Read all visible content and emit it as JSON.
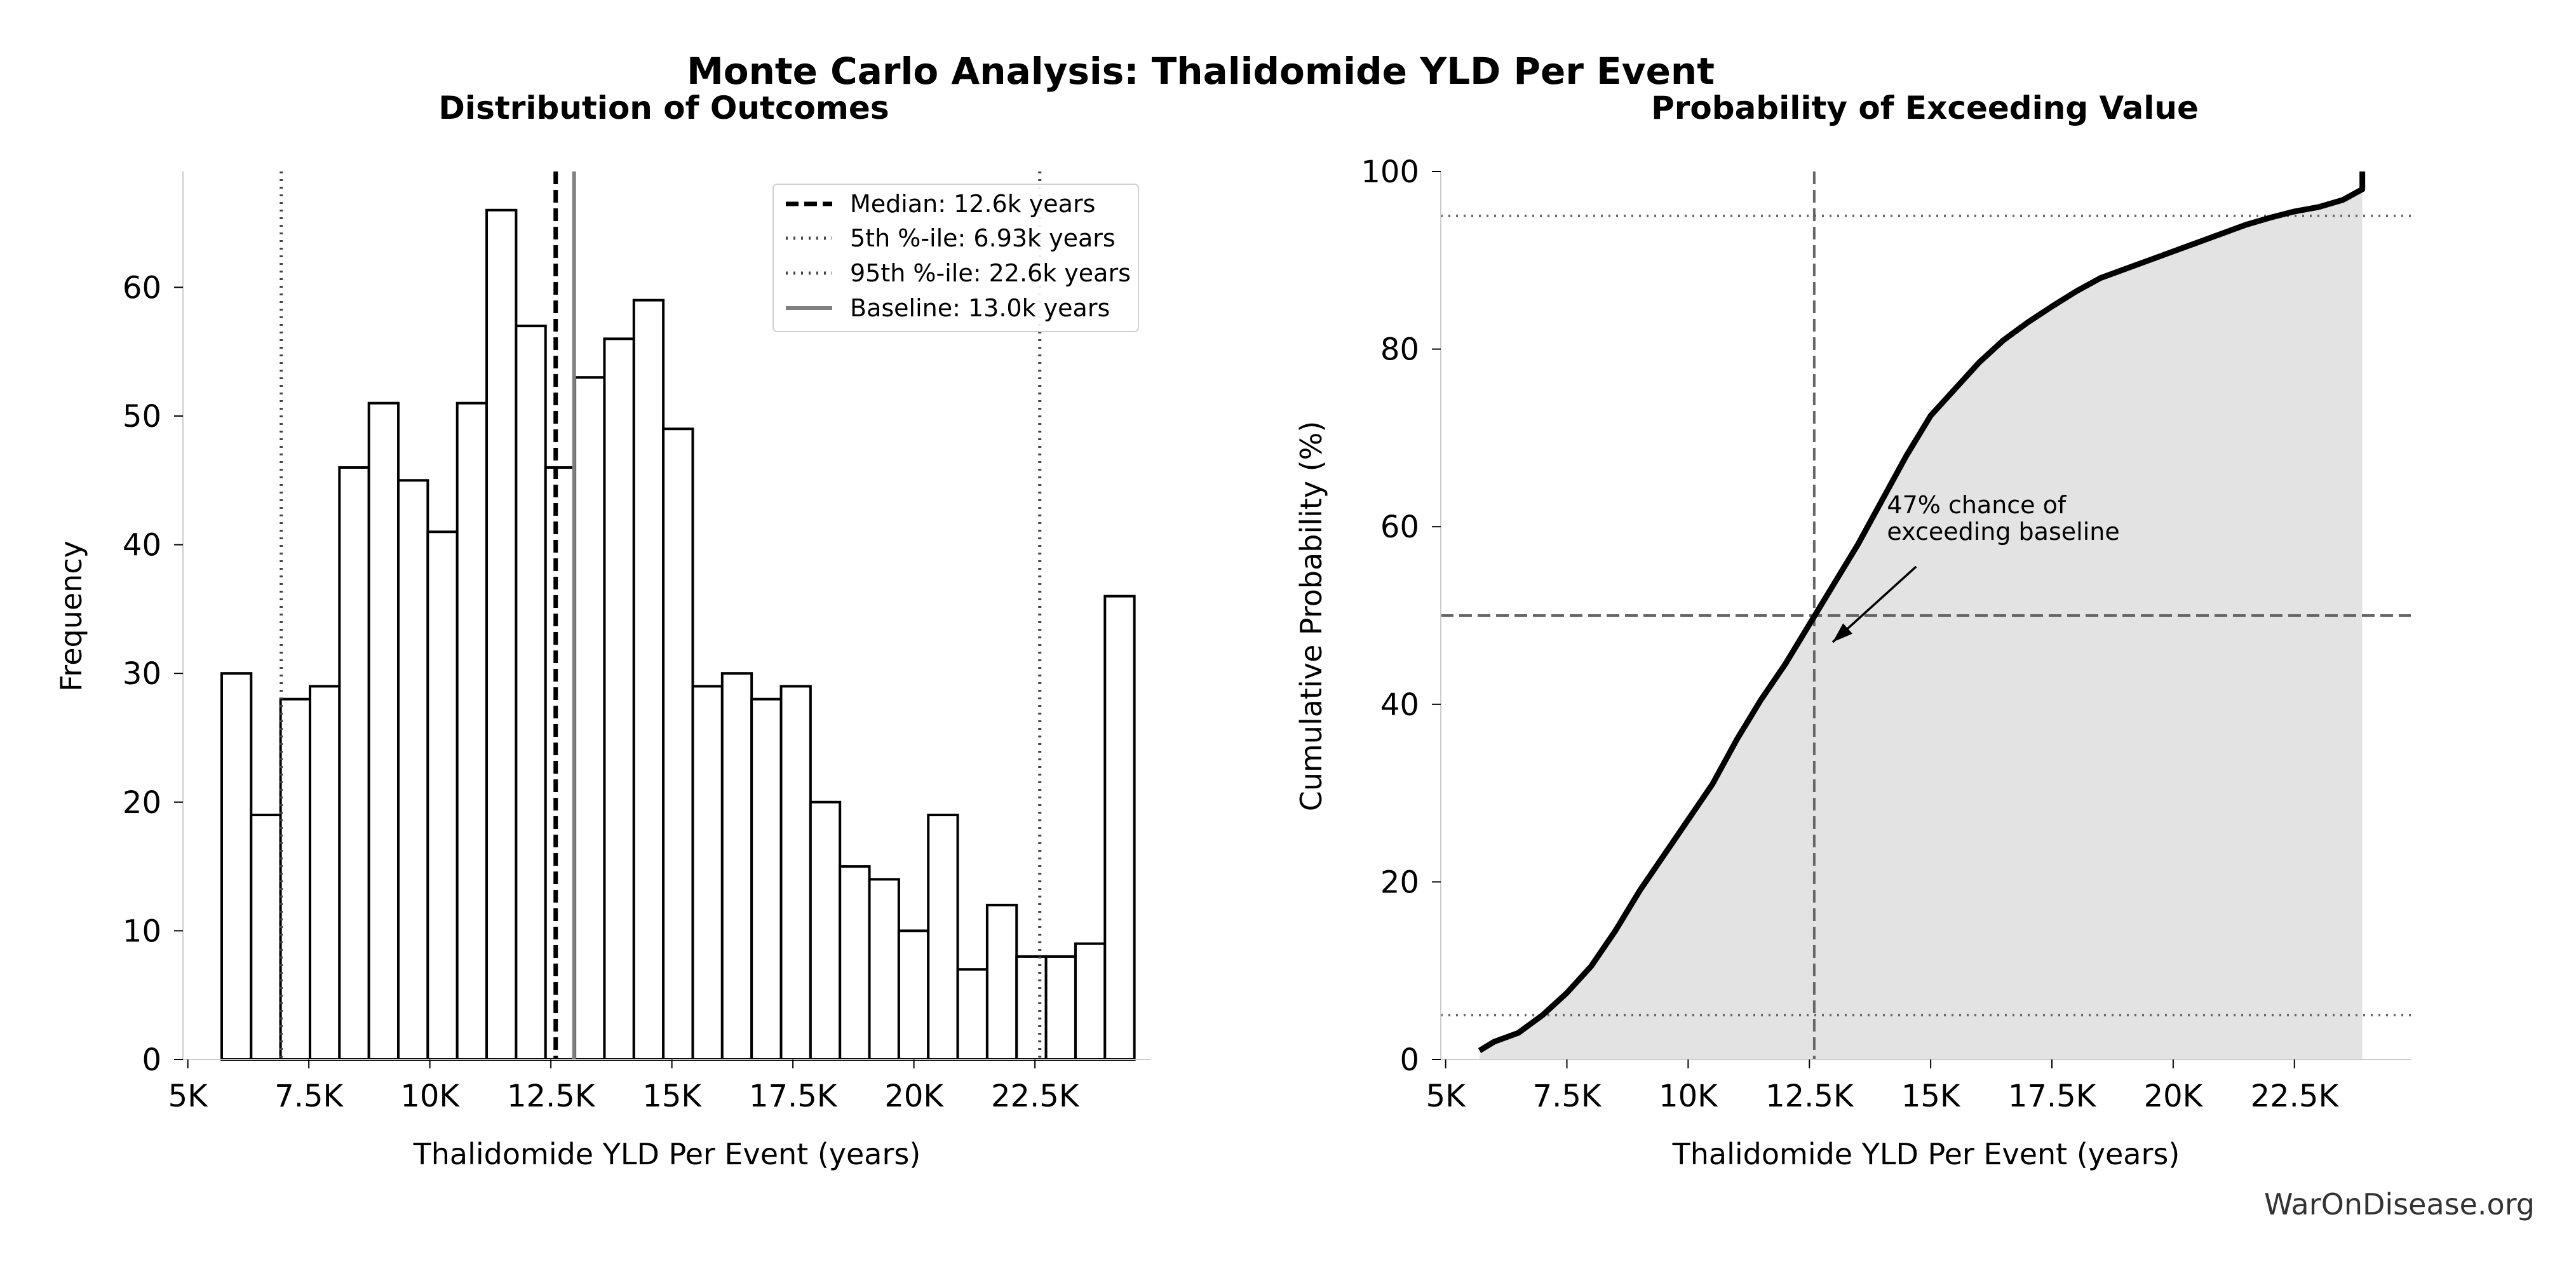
{
  "suptitle": "Monte Carlo Analysis: Thalidomide YLD Per Event",
  "watermark": "WarOnDisease.org",
  "colors": {
    "bar_fill": "#ffffff",
    "bar_edge": "#000000",
    "median_line": "#000000",
    "percentile_line": "#444444",
    "baseline_line": "#808080",
    "cdf_line": "#000000",
    "cdf_fill": "#e3e3e3",
    "grid_dash": "#666666",
    "text": "#000000"
  },
  "chart_data": [
    {
      "type": "bar",
      "subtype": "histogram",
      "title": "Distribution of Outcomes",
      "xlabel": "Thalidomide YLD Per Event (years)",
      "ylabel": "Frequency",
      "xlim": [
        4900,
        24900
      ],
      "ylim": [
        0,
        69
      ],
      "xticks": [
        5000,
        7500,
        10000,
        12500,
        15000,
        17500,
        20000,
        22500
      ],
      "xtick_labels": [
        "5K",
        "7.5K",
        "10K",
        "12.5K",
        "15K",
        "17.5K",
        "20K",
        "22.5K"
      ],
      "yticks": [
        0,
        10,
        20,
        30,
        40,
        50,
        60
      ],
      "ytick_labels": [
        "0",
        "10",
        "20",
        "30",
        "40",
        "50",
        "60"
      ],
      "bins": {
        "start": 5700,
        "width": 608.2,
        "counts": [
          30,
          19,
          28,
          29,
          46,
          51,
          45,
          41,
          51,
          66,
          57,
          46,
          53,
          56,
          59,
          49,
          29,
          30,
          28,
          29,
          20,
          15,
          14,
          10,
          19,
          7,
          12,
          8,
          8,
          9,
          36
        ]
      },
      "vlines": [
        {
          "label": "Median: 12.6k years",
          "x": 12600,
          "style": "dashed"
        },
        {
          "label": "5th %-ile: 6.93k years",
          "x": 6930,
          "style": "dotted"
        },
        {
          "label": "95th %-ile: 22.6k years",
          "x": 22600,
          "style": "dotted"
        },
        {
          "label": "Baseline: 13.0k years",
          "x": 12980,
          "style": "solid"
        }
      ],
      "legend_location": "upper right"
    },
    {
      "type": "line",
      "subtype": "exceedance-cdf",
      "title": "Probability of Exceeding Value",
      "xlabel": "Thalidomide YLD Per Event (years)",
      "ylabel": "Cumulative Probability (%)",
      "xlim": [
        4900,
        24900
      ],
      "ylim": [
        0,
        100
      ],
      "xticks": [
        5000,
        7500,
        10000,
        12500,
        15000,
        17500,
        20000,
        22500
      ],
      "xtick_labels": [
        "5K",
        "7.5K",
        "10K",
        "12.5K",
        "15K",
        "17.5K",
        "20K",
        "22.5K"
      ],
      "yticks": [
        0,
        20,
        40,
        60,
        80,
        100
      ],
      "ytick_labels": [
        "0",
        "20",
        "40",
        "60",
        "80",
        "100"
      ],
      "x": [
        5700,
        6000,
        6500,
        7000,
        7500,
        8000,
        8500,
        9000,
        9500,
        10000,
        10500,
        11000,
        11500,
        12000,
        12500,
        13000,
        13500,
        14000,
        14500,
        15000,
        15500,
        16000,
        16500,
        17000,
        17500,
        18000,
        18500,
        19000,
        19500,
        20000,
        20500,
        21000,
        21500,
        22000,
        22500,
        23000,
        23500,
        23900,
        23900
      ],
      "y": [
        1.0,
        2.0,
        3.0,
        5.0,
        7.5,
        10.5,
        14.5,
        19.0,
        23.0,
        27.0,
        31.0,
        36.0,
        40.5,
        44.5,
        49.0,
        53.5,
        58.0,
        63.0,
        68.0,
        72.5,
        75.5,
        78.5,
        81.0,
        83.0,
        84.8,
        86.5,
        88.0,
        89.0,
        90.0,
        91.0,
        92.0,
        93.0,
        94.0,
        94.8,
        95.5,
        96.0,
        96.8,
        98.0,
        100.0
      ],
      "hlines": [
        {
          "y": 95,
          "style": "dotted"
        },
        {
          "y": 50,
          "style": "dashed"
        },
        {
          "y": 5,
          "style": "dotted"
        }
      ],
      "vlines": [
        {
          "x": 12600,
          "style": "dashed"
        }
      ],
      "annotation": {
        "text_lines": [
          "47% chance of",
          "exceeding baseline"
        ],
        "text_at": [
          14100,
          61.5
        ],
        "arrow_to": [
          12980,
          47.0
        ],
        "arrow_from": [
          14700,
          55.5
        ]
      }
    }
  ]
}
